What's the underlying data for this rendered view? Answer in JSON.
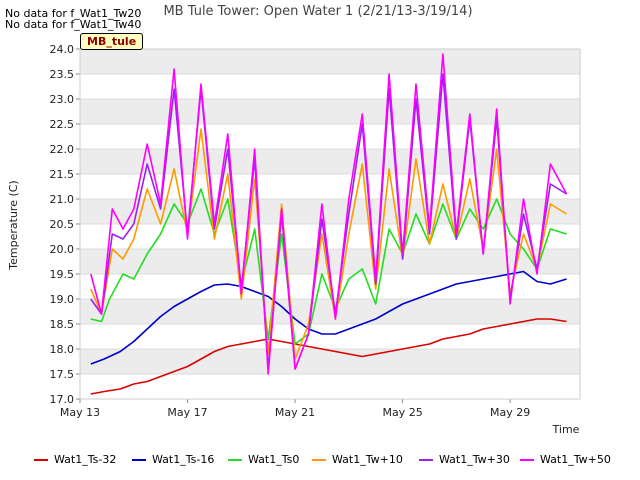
{
  "no_data_notes": [
    "No data for f_Wat1_Tw20",
    "No data for f_Wat1_Tw40"
  ],
  "badge_label": "MB_tule",
  "chart_data": {
    "type": "line",
    "title": "MB Tule Tower: Open Water 1 (2/21/13-3/19/14)",
    "xlabel": "Time",
    "ylabel": "Temperature (C)",
    "xlim_days": [
      13,
      31.6
    ],
    "ylim": [
      17.0,
      24.0
    ],
    "x_ticks": [
      {
        "day": 13,
        "label": "May 13"
      },
      {
        "day": 17,
        "label": "May 17"
      },
      {
        "day": 21,
        "label": "May 21"
      },
      {
        "day": 25,
        "label": "May 25"
      },
      {
        "day": 29,
        "label": "May 29"
      }
    ],
    "y_ticks": [
      "17.0",
      "17.5",
      "18.0",
      "18.5",
      "19.0",
      "19.5",
      "20.0",
      "20.5",
      "21.0",
      "21.5",
      "22.0",
      "22.5",
      "23.0",
      "23.5",
      "24.0"
    ],
    "grid": true,
    "legend_position": "bottom",
    "series": [
      {
        "name": "Wat1_Ts-32",
        "color": "#dd0000",
        "x": [
          13.4,
          13.9,
          14.5,
          15.0,
          15.5,
          16.0,
          16.5,
          17.0,
          17.5,
          18.0,
          18.5,
          19.0,
          19.5,
          20.0,
          20.5,
          21.0,
          21.5,
          22.0,
          22.5,
          23.0,
          23.5,
          24.0,
          24.5,
          25.0,
          25.5,
          26.0,
          26.5,
          27.0,
          27.5,
          28.0,
          28.5,
          29.0,
          29.5,
          30.0,
          30.5,
          31.1
        ],
        "y": [
          17.1,
          17.15,
          17.2,
          17.3,
          17.35,
          17.45,
          17.55,
          17.65,
          17.8,
          17.95,
          18.05,
          18.1,
          18.15,
          18.2,
          18.15,
          18.1,
          18.05,
          18.0,
          17.95,
          17.9,
          17.85,
          17.9,
          17.95,
          18.0,
          18.05,
          18.1,
          18.2,
          18.25,
          18.3,
          18.4,
          18.45,
          18.5,
          18.55,
          18.6,
          18.6,
          18.55
        ]
      },
      {
        "name": "Wat1_Ts-16",
        "color": "#0000cc",
        "x": [
          13.4,
          13.9,
          14.5,
          15.0,
          15.5,
          16.0,
          16.5,
          17.0,
          17.5,
          18.0,
          18.5,
          19.0,
          19.5,
          20.0,
          20.5,
          21.0,
          21.5,
          22.0,
          22.5,
          23.0,
          23.5,
          24.0,
          24.5,
          25.0,
          25.5,
          26.0,
          26.5,
          27.0,
          27.5,
          28.0,
          28.5,
          29.0,
          29.5,
          30.0,
          30.5,
          31.1
        ],
        "y": [
          17.7,
          17.8,
          17.95,
          18.15,
          18.4,
          18.65,
          18.85,
          19.0,
          19.15,
          19.28,
          19.3,
          19.25,
          19.15,
          19.05,
          18.85,
          18.6,
          18.4,
          18.3,
          18.3,
          18.4,
          18.5,
          18.6,
          18.75,
          18.9,
          19.0,
          19.1,
          19.2,
          19.3,
          19.35,
          19.4,
          19.45,
          19.5,
          19.55,
          19.35,
          19.3,
          19.4
        ]
      },
      {
        "name": "Wat1_Ts0",
        "color": "#22dd22",
        "x": [
          13.4,
          13.8,
          14.1,
          14.6,
          15.0,
          15.5,
          16.0,
          16.5,
          17.0,
          17.5,
          18.0,
          18.5,
          19.0,
          19.5,
          20.0,
          20.5,
          21.0,
          21.5,
          22.0,
          22.5,
          23.0,
          23.5,
          24.0,
          24.5,
          25.0,
          25.5,
          26.0,
          26.5,
          27.0,
          27.5,
          28.0,
          28.5,
          29.0,
          29.5,
          30.0,
          30.5,
          31.1
        ],
        "y": [
          18.6,
          18.55,
          19.0,
          19.5,
          19.4,
          19.9,
          20.3,
          20.9,
          20.5,
          21.2,
          20.3,
          21.0,
          19.3,
          20.4,
          18.2,
          20.3,
          18.1,
          18.3,
          19.5,
          18.8,
          19.4,
          19.6,
          18.9,
          20.4,
          19.9,
          20.7,
          20.1,
          20.9,
          20.2,
          20.8,
          20.4,
          21.0,
          20.3,
          20.0,
          19.6,
          20.4,
          20.3
        ]
      },
      {
        "name": "Wat1_Tw+10",
        "color": "#ff9900",
        "x": [
          13.4,
          13.8,
          14.2,
          14.6,
          15.0,
          15.5,
          16.0,
          16.5,
          17.0,
          17.5,
          18.0,
          18.5,
          19.0,
          19.5,
          20.0,
          20.5,
          21.0,
          21.5,
          22.0,
          22.5,
          23.0,
          23.5,
          24.0,
          24.5,
          25.0,
          25.5,
          26.0,
          26.5,
          27.0,
          27.5,
          28.0,
          28.5,
          29.0,
          29.5,
          30.0,
          30.5,
          31.1
        ],
        "y": [
          19.2,
          18.7,
          20.0,
          19.8,
          20.2,
          21.2,
          20.5,
          21.6,
          20.3,
          22.4,
          20.2,
          21.5,
          19.0,
          21.4,
          17.9,
          20.9,
          17.8,
          18.5,
          20.3,
          18.6,
          20.3,
          21.7,
          19.2,
          21.6,
          19.8,
          21.8,
          20.1,
          21.3,
          20.2,
          21.4,
          20.0,
          22.0,
          19.1,
          20.3,
          19.6,
          20.9,
          20.7
        ]
      },
      {
        "name": "Wat1_Tw+30",
        "color": "#9922ee",
        "x": [
          13.4,
          13.8,
          14.2,
          14.6,
          15.0,
          15.5,
          16.0,
          16.5,
          17.0,
          17.5,
          18.0,
          18.5,
          19.0,
          19.5,
          20.0,
          20.5,
          21.0,
          21.5,
          22.0,
          22.5,
          23.0,
          23.5,
          24.0,
          24.5,
          25.0,
          25.5,
          26.0,
          26.5,
          27.0,
          27.5,
          28.0,
          28.5,
          29.0,
          29.5,
          30.0,
          30.5,
          31.1
        ],
        "y": [
          19.0,
          18.7,
          20.3,
          20.2,
          20.5,
          21.7,
          20.8,
          23.2,
          20.3,
          23.2,
          20.4,
          22.0,
          19.2,
          21.8,
          17.6,
          20.7,
          17.6,
          18.3,
          20.6,
          18.7,
          20.7,
          22.5,
          19.3,
          23.2,
          19.8,
          23.0,
          20.3,
          23.5,
          20.2,
          22.6,
          19.9,
          22.6,
          19.0,
          20.7,
          19.6,
          21.3,
          21.1
        ]
      },
      {
        "name": "Wat1_Tw+50",
        "color": "#ff00ff",
        "x": [
          13.4,
          13.8,
          14.2,
          14.6,
          15.0,
          15.5,
          16.0,
          16.5,
          17.0,
          17.5,
          18.0,
          18.5,
          19.0,
          19.5,
          20.0,
          20.5,
          21.0,
          21.5,
          22.0,
          22.5,
          23.0,
          23.5,
          24.0,
          24.5,
          25.0,
          25.5,
          26.0,
          26.5,
          27.0,
          27.5,
          28.0,
          28.5,
          29.0,
          29.5,
          30.0,
          30.5,
          31.1
        ],
        "y": [
          19.5,
          18.7,
          20.8,
          20.4,
          20.8,
          22.1,
          20.9,
          23.6,
          20.2,
          23.3,
          20.5,
          22.3,
          19.1,
          22.0,
          17.5,
          20.8,
          17.6,
          18.3,
          20.9,
          18.6,
          21.0,
          22.7,
          19.4,
          23.5,
          19.9,
          23.3,
          20.4,
          23.9,
          20.3,
          22.7,
          19.9,
          22.8,
          18.9,
          21.0,
          19.5,
          21.7,
          21.1
        ]
      }
    ]
  }
}
